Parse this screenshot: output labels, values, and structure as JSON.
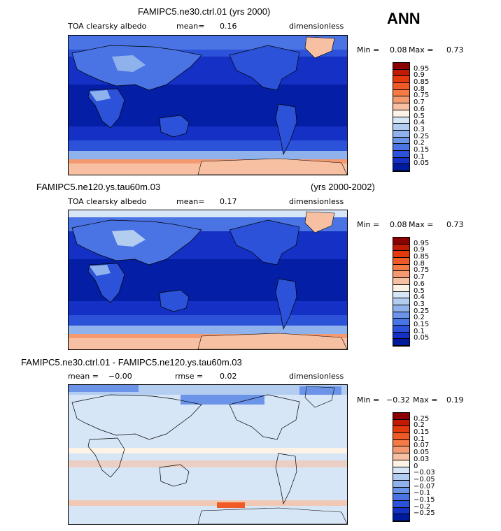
{
  "season": "ANN",
  "units": "dimensionless",
  "panels": [
    {
      "case_title": "FAMIPC5.ne30.ctrl.01 (yrs 2000)",
      "years": "",
      "variable": "TOA clearsky albedo",
      "mean_label": "mean=",
      "mean_value": "0.16",
      "rmse_label": "",
      "rmse_value": "",
      "units": "dimensionless",
      "min_label": "Min =",
      "min_value": "0.08",
      "max_label": "Max =",
      "max_value": "0.73",
      "colorbar": {
        "labels": [
          "0.95",
          "0.9",
          "0.85",
          "0.8",
          "0.75",
          "0.7",
          "0.6",
          "0.5",
          "0.4",
          "0.3",
          "0.25",
          "0.2",
          "0.15",
          "0.1",
          "0.05"
        ],
        "colors": [
          "#8b0000",
          "#c01a00",
          "#e23a0c",
          "#f05a26",
          "#f57a45",
          "#f59a70",
          "#f8c0a2",
          "#fdf2e6",
          "#d7e6f7",
          "#b3cdf0",
          "#8fb2ec",
          "#6b94e8",
          "#4a74e4",
          "#2b52d8",
          "#1530c4",
          "#001a9e"
        ]
      }
    },
    {
      "case_title": "FAMIPC5.ne120.ys.tau60m.03",
      "years": "(yrs 2000-2002)",
      "variable": "TOA clearsky albedo",
      "mean_label": "mean=",
      "mean_value": "0.17",
      "rmse_label": "",
      "rmse_value": "",
      "units": "dimensionless",
      "min_label": "Min =",
      "min_value": "0.08",
      "max_label": "Max =",
      "max_value": "0.73",
      "colorbar": {
        "labels": [
          "0.95",
          "0.9",
          "0.85",
          "0.8",
          "0.75",
          "0.7",
          "0.6",
          "0.5",
          "0.4",
          "0.3",
          "0.25",
          "0.2",
          "0.15",
          "0.1",
          "0.05"
        ],
        "colors": [
          "#8b0000",
          "#c01a00",
          "#e23a0c",
          "#f05a26",
          "#f57a45",
          "#f59a70",
          "#f8c0a2",
          "#fdf2e6",
          "#d7e6f7",
          "#b3cdf0",
          "#8fb2ec",
          "#6b94e8",
          "#4a74e4",
          "#2b52d8",
          "#1530c4",
          "#001a9e"
        ]
      }
    },
    {
      "case_title": "FAMIPC5.ne30.ctrl.01 - FAMIPC5.ne120.ys.tau60m.03",
      "years": "",
      "variable": "",
      "mean_label": "mean =",
      "mean_value": "−0.00",
      "rmse_label": "rmse =",
      "rmse_value": "0.02",
      "units": "dimensionless",
      "min_label": "Min =",
      "min_value": "−0.32",
      "max_label": "Max =",
      "max_value": "0.19",
      "colorbar": {
        "labels": [
          "0.25",
          "0.2",
          "0.15",
          "0.1",
          "0.07",
          "0.05",
          "0.03",
          "0",
          "−0.03",
          "−0.05",
          "−0.07",
          "−0.1",
          "−0.15",
          "−0.2",
          "−0.25"
        ],
        "colors": [
          "#8b0000",
          "#c01a00",
          "#e23a0c",
          "#f05a26",
          "#f57a45",
          "#f59a70",
          "#f8c0a2",
          "#fdf2e6",
          "#d7e6f7",
          "#b3cdf0",
          "#8fb2ec",
          "#6b94e8",
          "#4a74e4",
          "#2b52d8",
          "#1530c4",
          "#001a9e"
        ]
      }
    }
  ]
}
